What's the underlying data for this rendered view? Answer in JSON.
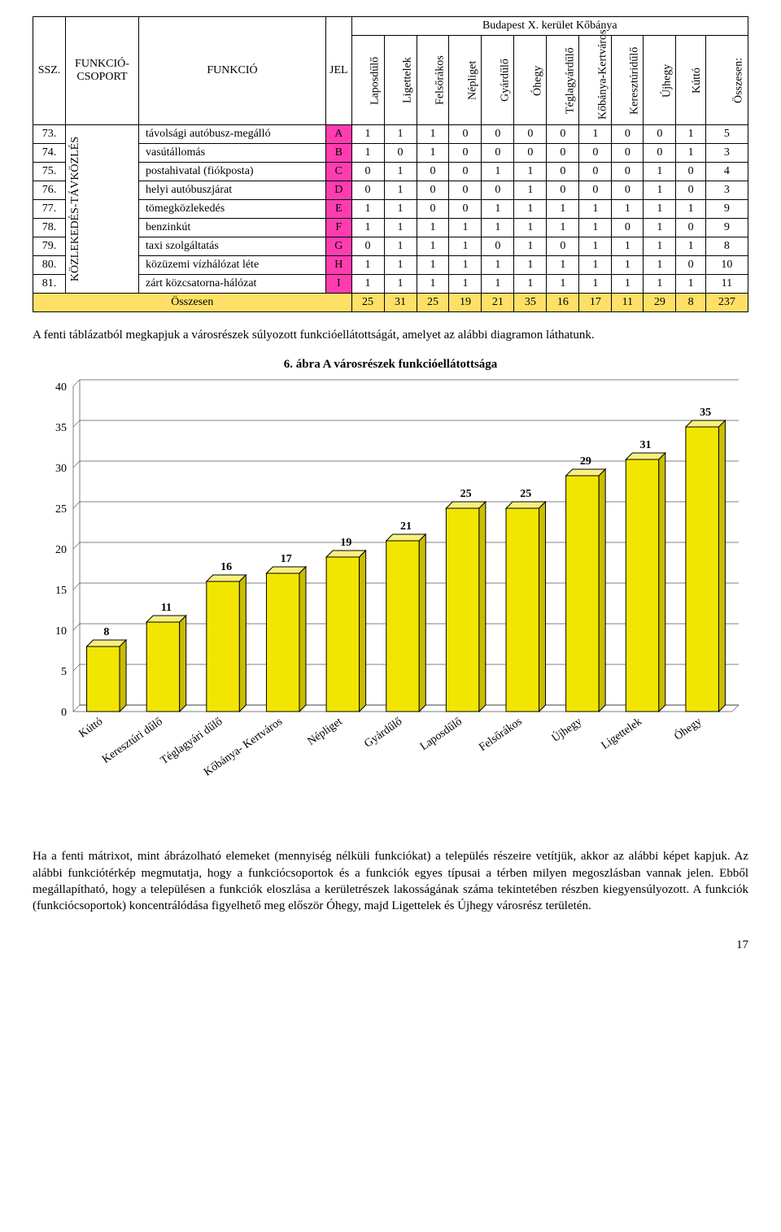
{
  "table": {
    "super_header": "Budapest X. kerület Kőbánya",
    "headers": {
      "ssz": "SSZ.",
      "group": "FUNKCIÓ-CSOPORT",
      "funk": "FUNKCIÓ",
      "jel": "JEL"
    },
    "columns": [
      "Laposdűlő",
      "Ligettelek",
      "Felsőrákos",
      "Népliget",
      "Gyárdűlő",
      "Óhegy",
      "Téglagyárdűlő",
      "Kőbánya-Kertváros",
      "Keresztúridűlő",
      "Újhegy",
      "Kúttó",
      "Összesen:"
    ],
    "group_label": "KÖZLEKEDÉS-TÁVKÖZLÉS",
    "rows": [
      {
        "ssz": "73.",
        "name": "távolsági autóbusz-megálló",
        "jel": "A",
        "vals": [
          1,
          1,
          1,
          0,
          0,
          0,
          0,
          1,
          0,
          0,
          1,
          5
        ]
      },
      {
        "ssz": "74.",
        "name": "vasútállomás",
        "jel": "B",
        "vals": [
          1,
          0,
          1,
          0,
          0,
          0,
          0,
          0,
          0,
          0,
          1,
          3
        ]
      },
      {
        "ssz": "75.",
        "name": "postahivatal (fiókposta)",
        "jel": "C",
        "vals": [
          0,
          1,
          0,
          0,
          1,
          1,
          0,
          0,
          0,
          1,
          0,
          4
        ]
      },
      {
        "ssz": "76.",
        "name": "helyi autóbuszjárat",
        "jel": "D",
        "vals": [
          0,
          1,
          0,
          0,
          0,
          1,
          0,
          0,
          0,
          1,
          0,
          3
        ]
      },
      {
        "ssz": "77.",
        "name": "tömegközlekedés",
        "jel": "E",
        "vals": [
          1,
          1,
          0,
          0,
          1,
          1,
          1,
          1,
          1,
          1,
          1,
          9
        ]
      },
      {
        "ssz": "78.",
        "name": "benzinkút",
        "jel": "F",
        "vals": [
          1,
          1,
          1,
          1,
          1,
          1,
          1,
          1,
          0,
          1,
          0,
          9
        ]
      },
      {
        "ssz": "79.",
        "name": "taxi szolgáltatás",
        "jel": "G",
        "vals": [
          0,
          1,
          1,
          1,
          0,
          1,
          0,
          1,
          1,
          1,
          1,
          8
        ]
      },
      {
        "ssz": "80.",
        "name": "közüzemi vízhálózat léte",
        "jel": "H",
        "vals": [
          1,
          1,
          1,
          1,
          1,
          1,
          1,
          1,
          1,
          1,
          0,
          10
        ]
      },
      {
        "ssz": "81.",
        "name": "zárt közcsatorna-hálózat",
        "jel": "I",
        "vals": [
          1,
          1,
          1,
          1,
          1,
          1,
          1,
          1,
          1,
          1,
          1,
          11
        ]
      }
    ],
    "total_label": "Összesen",
    "totals": [
      25,
      31,
      25,
      19,
      21,
      35,
      16,
      17,
      11,
      29,
      8,
      237
    ]
  },
  "paragraph1": "A fenti táblázatból megkapjuk a városrészek súlyozott funkcióellátottságát, amelyet az alábbi diagramon láthatunk.",
  "caption": "6.   ábra A városrészek funkcióellátottsága",
  "chart": {
    "type": "bar-3d",
    "ylim": [
      0,
      40
    ],
    "ytick_step": 5,
    "yticks": [
      0,
      5,
      10,
      15,
      20,
      25,
      30,
      35,
      40
    ],
    "background_color": "#ffffff",
    "grid_color": "#000000",
    "bar_fill": "#f2e600",
    "bar_top": "#f8f080",
    "bar_side": "#c9bd00",
    "label_fontsize": 14,
    "tick_fontsize": 14,
    "depth": 8,
    "data": [
      {
        "label": "Kúttó",
        "value": 8
      },
      {
        "label": "Keresztúri dűlő",
        "value": 11
      },
      {
        "label": "Téglagyári dűlő",
        "value": 16
      },
      {
        "label": "Kőbánya- Kertváros",
        "value": 17
      },
      {
        "label": "Népliget",
        "value": 19
      },
      {
        "label": "Gyárdűlő",
        "value": 21
      },
      {
        "label": "Laposdűlő",
        "value": 25
      },
      {
        "label": "Felsőrákos",
        "value": 25
      },
      {
        "label": "Újhegy",
        "value": 29
      },
      {
        "label": "Ligettelek",
        "value": 31
      },
      {
        "label": "Óhegy",
        "value": 35
      }
    ]
  },
  "paragraph2": "Ha a fenti mátrixot, mint ábrázolható elemeket (mennyiség nélküli funkciókat) a település részeire vetítjük, akkor az alábbi képet kapjuk. Az alábbi funkciótérkép megmutatja, hogy a funkciócsoportok és a funkciók egyes típusai a térben milyen megoszlásban vannak jelen. Ebből megállapítható, hogy a településen a funkciók eloszlása a kerületrészek lakosságának száma tekintetében részben kiegyensúlyozott. A funkciók (funkciócsoportok) koncentrálódása figyelhető meg először Óhegy, majd Ligettelek és Újhegy városrész területén.",
  "page_number": "17"
}
